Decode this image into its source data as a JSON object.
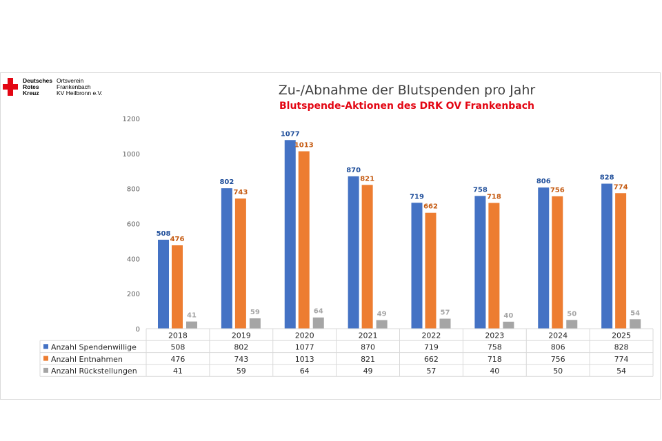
{
  "logo": {
    "line1a": "Deutsches",
    "line2a": "Rotes",
    "line3a": "Kreuz",
    "line1b": "Ortsverein",
    "line2b": "Frankenbach",
    "line3b": "KV Heilbronn e.V."
  },
  "chart_data": {
    "type": "bar",
    "title": "Zu-/Abnahme der Blutspenden pro Jahr",
    "subtitle": "Blutspende-Aktionen des DRK OV Frankenbach",
    "categories": [
      "2018",
      "2019",
      "2020",
      "2021",
      "2022",
      "2023",
      "2024",
      "2025"
    ],
    "series": [
      {
        "name": "Anzahl Spendenwillige",
        "color": "#4472c4",
        "label_color": "#1f4e9a",
        "values": [
          508,
          802,
          1077,
          870,
          719,
          758,
          806,
          828
        ]
      },
      {
        "name": "Anzahl Entnahmen",
        "color": "#ed7d31",
        "label_color": "#c55a11",
        "values": [
          476,
          743,
          1013,
          821,
          662,
          718,
          756,
          774
        ]
      },
      {
        "name": "Anzahl Rückstellungen",
        "color": "#a5a5a5",
        "label_color": "#a5a5a5",
        "values": [
          41,
          59,
          64,
          49,
          57,
          40,
          50,
          54
        ]
      }
    ],
    "ylim": [
      0,
      1200
    ],
    "yticks": [
      0,
      200,
      400,
      600,
      800,
      1000,
      1200
    ],
    "grid": false,
    "legend": "data-table-below"
  }
}
